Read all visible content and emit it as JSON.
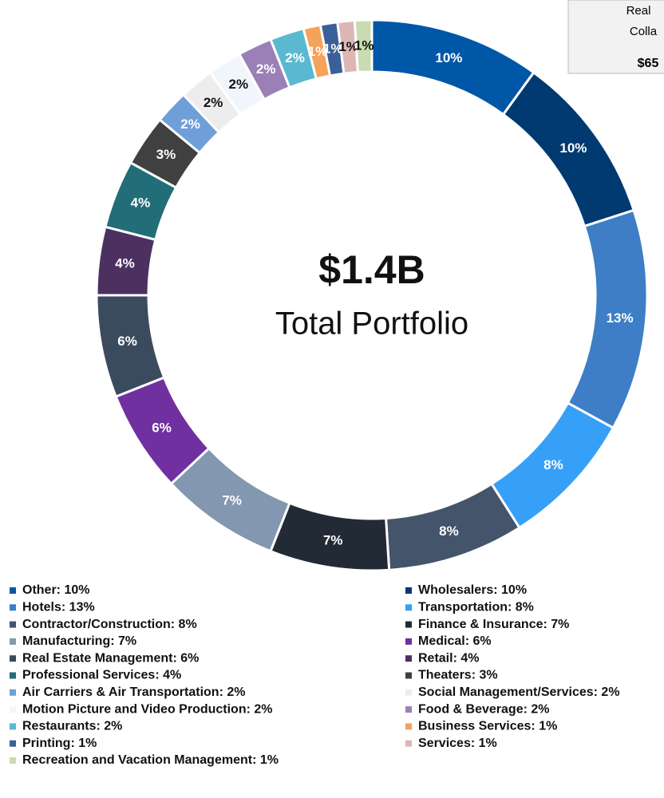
{
  "chart_data": {
    "type": "donut",
    "center_title": "$1.4B",
    "center_subtitle": "Total Portfolio",
    "annotation": [
      "Real",
      "Colla",
      "$65"
    ],
    "categories": [
      "Other",
      "Wholesalers",
      "Hotels",
      "Transportation",
      "Contractor/Construction",
      "Finance & Insurance",
      "Manufacturing",
      "Medical",
      "Real Estate Management",
      "Retail",
      "Professional Services",
      "Theaters",
      "Air Carriers & Air Transportation",
      "Social Management/Services",
      "Motion Picture and Video Production",
      "Food & Beverage",
      "Restaurants",
      "Business Services",
      "Printing",
      "Services",
      "Recreation and Vacation Management"
    ],
    "values": [
      10,
      10,
      13,
      8,
      8,
      7,
      7,
      6,
      6,
      4,
      4,
      3,
      2,
      2,
      2,
      2,
      2,
      1,
      1,
      1,
      1
    ],
    "value_labels": [
      "10%",
      "10%",
      "13%",
      "8%",
      "8%",
      "7%",
      "7%",
      "6%",
      "6%",
      "4%",
      "4%",
      "3%",
      "2%",
      "2%",
      "2%",
      "2%",
      "2%",
      "1%",
      "1%",
      "1%",
      "1%"
    ],
    "legend": [
      "Other: 10%",
      "Wholesalers: 10%",
      "Hotels: 13%",
      "Transportation: 8%",
      "Contractor/Construction: 8%",
      "Finance & Insurance: 7%",
      "Manufacturing: 7%",
      "Medical: 6%",
      "Real Estate Management: 6%",
      "Retail: 4%",
      "Professional Services: 4%",
      "Theaters: 3%",
      "Air Carriers & Air Transportation: 2%",
      "Social Management/Services: 2%",
      "Motion Picture and Video Production: 2%",
      "Food & Beverage: 2%",
      "Restaurants: 2%",
      "Business Services: 1%",
      "Printing: 1%",
      "Services: 1%",
      "Recreation and Vacation Management: 1%"
    ],
    "colors": [
      "#0057a8",
      "#003a70",
      "#3d7ec6",
      "#36a0f8",
      "#44546a",
      "#222a35",
      "#8497b0",
      "#7030a0",
      "#3b4b5e",
      "#4b3060",
      "#216d78",
      "#404040",
      "#6f9fd8",
      "#ededed",
      "#f0f6fc",
      "#9b80b8",
      "#5ab9d0",
      "#f5a25a",
      "#3b5f98",
      "#deb5b5",
      "#c9dbb0"
    ]
  }
}
